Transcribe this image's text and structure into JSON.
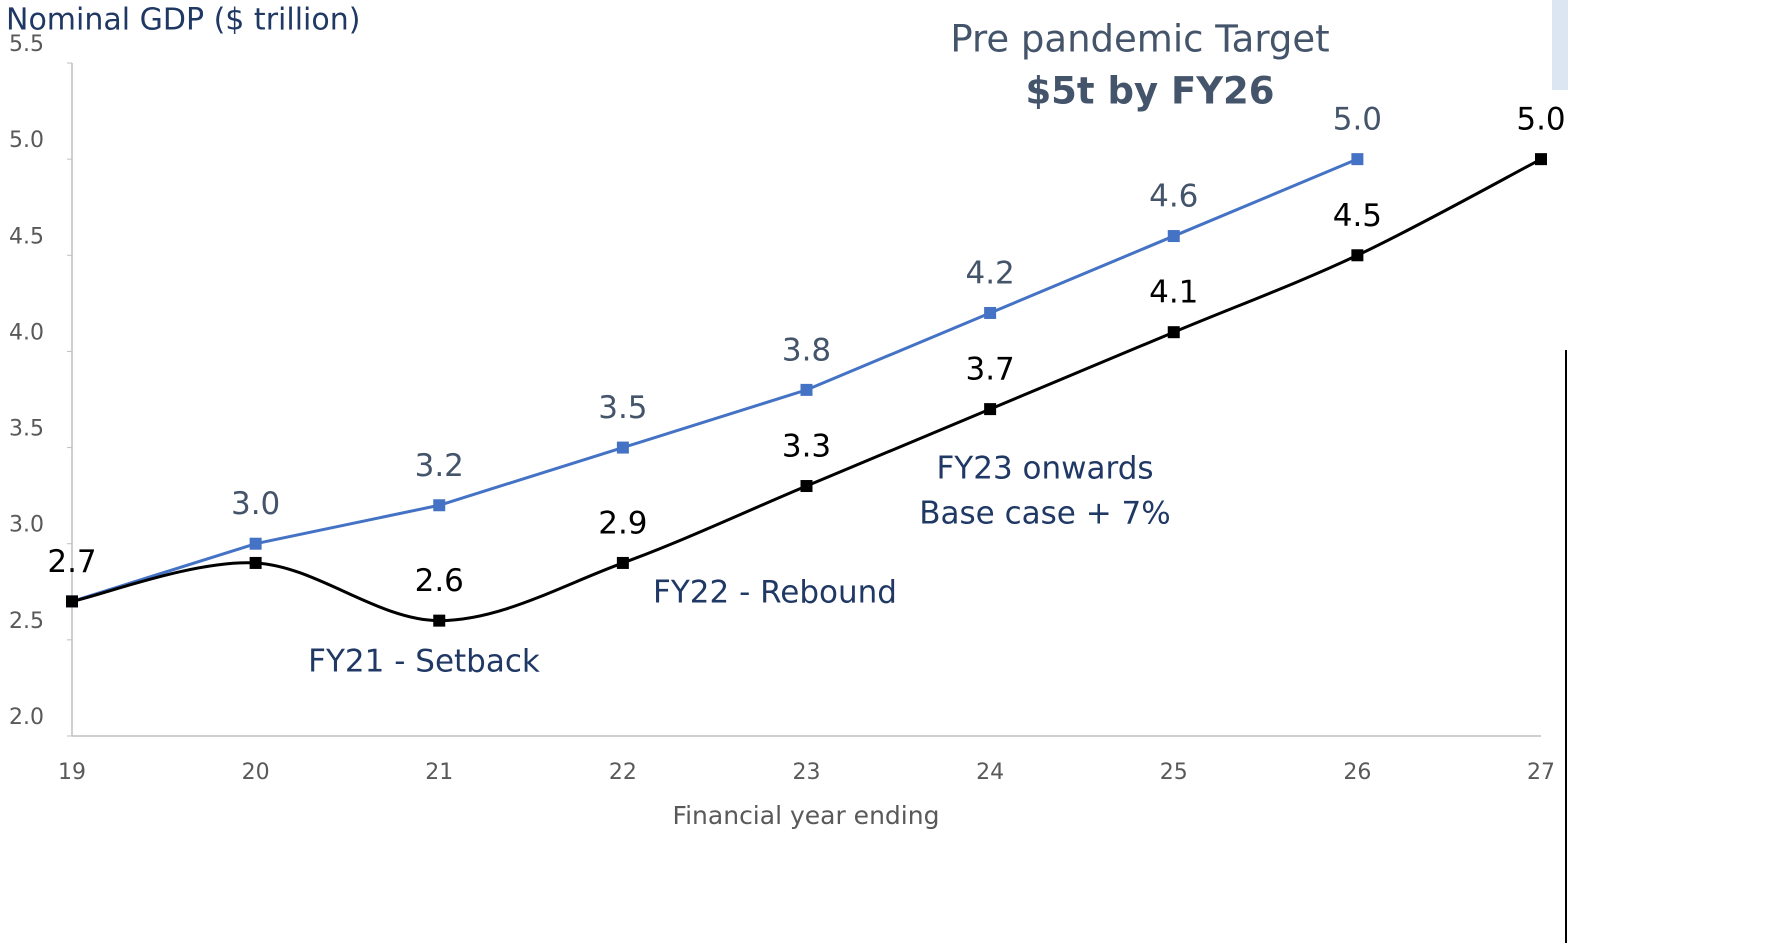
{
  "chart_data": {
    "type": "line",
    "y_axis_label": "Nominal GDP ($ trillion)",
    "x_axis_label": "Financial year ending",
    "annotations": [
      "Pre pandemic Target",
      "$5t by FY26",
      "FY21 - Setback",
      "FY22 - Rebound",
      "FY23 onwards",
      "Base case  + 7%"
    ],
    "categories": [
      "19",
      "20",
      "21",
      "22",
      "23",
      "24",
      "25",
      "26",
      "27"
    ],
    "series": [
      {
        "color": "#4472c4",
        "label_color": "#44546a",
        "smooth": false,
        "values": [
          2.7,
          3.0,
          3.2,
          3.5,
          3.8,
          4.2,
          4.6,
          5.0,
          null
        ],
        "value_labels": [
          null,
          "3.0",
          "3.2",
          "3.5",
          "3.8",
          "4.2",
          "4.6",
          "5.0",
          null
        ]
      },
      {
        "color": "#000000",
        "label_color": "#000000",
        "smooth": true,
        "values": [
          2.7,
          2.9,
          2.6,
          2.9,
          3.3,
          3.7,
          4.1,
          4.5,
          5.0
        ],
        "value_labels": [
          "2.7",
          null,
          "2.6",
          "2.9",
          "3.3",
          "3.7",
          "4.1",
          "4.5",
          "5.0"
        ]
      }
    ],
    "ylim": [
      2.0,
      5.5
    ],
    "yticks": [
      {
        "value": 2.0,
        "label": "2.0"
      },
      2.5,
      {
        "value": 3.0,
        "label": "3.0"
      },
      3.5,
      {
        "value": 4.0,
        "label": "4.0"
      },
      4.5,
      {
        "value": 5.0,
        "label": "5.0"
      },
      5.5
    ],
    "grid": false
  }
}
